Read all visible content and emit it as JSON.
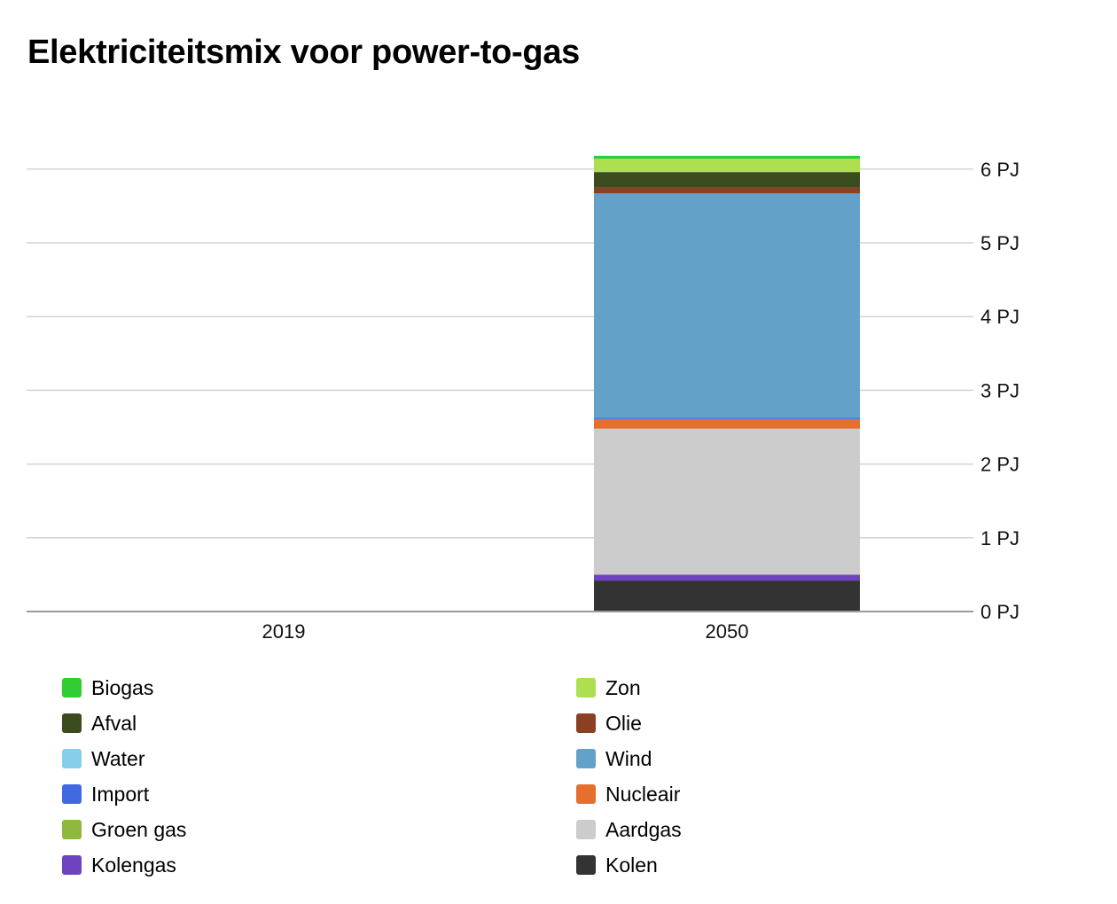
{
  "chart_data": {
    "type": "bar",
    "stacked": true,
    "title": "Elektriciteitsmix voor power-to-gas",
    "xlabel": "",
    "ylabel": "",
    "unit": "PJ",
    "categories": [
      "2019",
      "2050"
    ],
    "ylim": [
      0,
      6.2
    ],
    "yticks": [
      {
        "value": 0,
        "label": "0 PJ"
      },
      {
        "value": 1,
        "label": "1 PJ"
      },
      {
        "value": 2,
        "label": "2 PJ"
      },
      {
        "value": 3,
        "label": "3 PJ"
      },
      {
        "value": 4,
        "label": "4 PJ"
      },
      {
        "value": 5,
        "label": "5 PJ"
      },
      {
        "value": 6,
        "label": "6 PJ"
      }
    ],
    "grid": true,
    "legend_position": "bottom",
    "series": [
      {
        "name": "Kolen",
        "color": "#333333",
        "values": [
          0,
          0.42
        ]
      },
      {
        "name": "Kolengas",
        "color": "#6f42c1",
        "values": [
          0,
          0.08
        ]
      },
      {
        "name": "Aardgas",
        "color": "#cccccc",
        "values": [
          0,
          1.98
        ]
      },
      {
        "name": "Groen gas",
        "color": "#8fb83e",
        "values": [
          0,
          0
        ]
      },
      {
        "name": "Nucleair",
        "color": "#e5702d",
        "values": [
          0,
          0.13
        ]
      },
      {
        "name": "Import",
        "color": "#4169e1",
        "values": [
          0,
          0.02
        ]
      },
      {
        "name": "Wind",
        "color": "#63a1c8",
        "values": [
          0,
          3.04
        ]
      },
      {
        "name": "Water",
        "color": "#87ceeb",
        "values": [
          0,
          0
        ]
      },
      {
        "name": "Olie",
        "color": "#8b4023",
        "values": [
          0,
          0.08
        ]
      },
      {
        "name": "Afval",
        "color": "#3a4b1e",
        "values": [
          0,
          0.21
        ]
      },
      {
        "name": "Zon",
        "color": "#addf50",
        "values": [
          0,
          0.18
        ]
      },
      {
        "name": "Biogas",
        "color": "#32cd32",
        "values": [
          0,
          0.04
        ]
      }
    ],
    "legend": [
      {
        "name": "Biogas",
        "color": "#32cd32"
      },
      {
        "name": "Zon",
        "color": "#addf50"
      },
      {
        "name": "Afval",
        "color": "#3a4b1e"
      },
      {
        "name": "Olie",
        "color": "#8b4023"
      },
      {
        "name": "Water",
        "color": "#87ceeb"
      },
      {
        "name": "Wind",
        "color": "#63a1c8"
      },
      {
        "name": "Import",
        "color": "#4169e1"
      },
      {
        "name": "Nucleair",
        "color": "#e5702d"
      },
      {
        "name": "Groen gas",
        "color": "#8fb83e"
      },
      {
        "name": "Aardgas",
        "color": "#cccccc"
      },
      {
        "name": "Kolengas",
        "color": "#6f42c1"
      },
      {
        "name": "Kolen",
        "color": "#333333"
      }
    ]
  }
}
